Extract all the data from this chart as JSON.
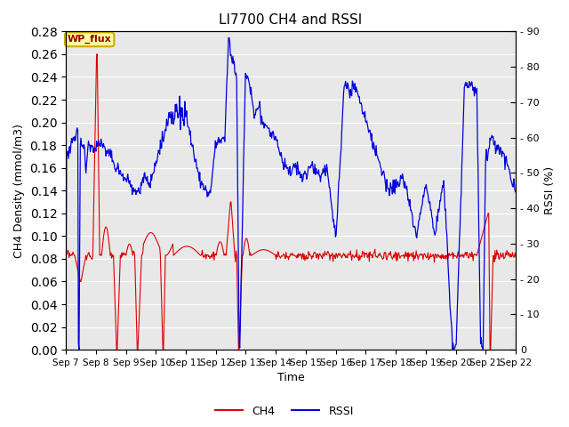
{
  "title": "LI7700 CH4 and RSSI",
  "xlabel": "Time",
  "ylabel_left": "CH4 Density (mmol/m3)",
  "ylabel_right": "RSSI (%)",
  "annotation": "WP_flux",
  "ylim_left": [
    0.0,
    0.28
  ],
  "ylim_right": [
    0,
    90
  ],
  "x_ticks": [
    7,
    8,
    9,
    10,
    11,
    12,
    13,
    14,
    15,
    16,
    17,
    18,
    19,
    20,
    21,
    22
  ],
  "x_tick_labels": [
    "Sep 7",
    "Sep 8",
    "Sep 9",
    "Sep 10",
    "Sep 11",
    "Sep 12",
    "Sep 13",
    "Sep 14",
    "Sep 15",
    "Sep 16",
    "Sep 17",
    "Sep 18",
    "Sep 19",
    "Sep 20",
    "Sep 21",
    "Sep 22"
  ],
  "background_color": "#e8e8e8",
  "ch4_color": "#dd0000",
  "rssi_color": "#0000dd",
  "legend_ch4": "CH4",
  "legend_rssi": "RSSI",
  "grid_color": "#ffffff",
  "annotation_bg": "#ffff99",
  "annotation_border": "#ccaa00",
  "yticks_left": [
    0.0,
    0.02,
    0.04,
    0.06,
    0.08,
    0.1,
    0.12,
    0.14,
    0.16,
    0.18,
    0.2,
    0.22,
    0.24,
    0.26,
    0.28
  ],
  "yticks_right": [
    0,
    10,
    20,
    30,
    40,
    50,
    60,
    70,
    80,
    90
  ],
  "right_tick_labels": [
    "0",
    "10",
    "20",
    "30",
    "40",
    "50",
    "60",
    "70",
    "80",
    "90"
  ],
  "figsize": [
    6.4,
    4.8
  ],
  "dpi": 100
}
